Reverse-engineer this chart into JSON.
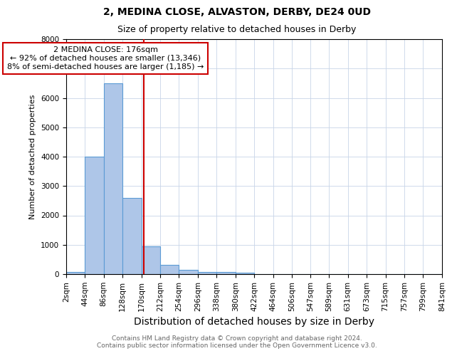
{
  "title": "2, MEDINA CLOSE, ALVASTON, DERBY, DE24 0UD",
  "subtitle": "Size of property relative to detached houses in Derby",
  "xlabel": "Distribution of detached houses by size in Derby",
  "ylabel": "Number of detached properties",
  "bin_edges": [
    2,
    44,
    86,
    128,
    170,
    212,
    254,
    296,
    338,
    380,
    422,
    464,
    506,
    547,
    589,
    631,
    673,
    715,
    757,
    799,
    841
  ],
  "bar_heights": [
    75,
    4000,
    6500,
    2600,
    950,
    320,
    150,
    75,
    75,
    60,
    0,
    0,
    0,
    0,
    0,
    0,
    0,
    0,
    0,
    0
  ],
  "bar_color": "#aec6e8",
  "bar_edge_color": "#5b9bd5",
  "property_size": 176,
  "vline_color": "#cc0000",
  "annotation_line1": "2 MEDINA CLOSE: 176sqm",
  "annotation_line2": "← 92% of detached houses are smaller (13,346)",
  "annotation_line3": "8% of semi-detached houses are larger (1,185) →",
  "annotation_box_color": "#cc0000",
  "ylim": [
    0,
    8000
  ],
  "yticks": [
    0,
    1000,
    2000,
    3000,
    4000,
    5000,
    6000,
    7000,
    8000
  ],
  "footnote": "Contains HM Land Registry data © Crown copyright and database right 2024.\nContains public sector information licensed under the Open Government Licence v3.0.",
  "title_fontsize": 10,
  "subtitle_fontsize": 9,
  "xlabel_fontsize": 10,
  "ylabel_fontsize": 8,
  "tick_fontsize": 7.5,
  "annotation_fontsize": 8,
  "footnote_fontsize": 6.5,
  "background_color": "#ffffff",
  "grid_color": "#c8d4e8"
}
